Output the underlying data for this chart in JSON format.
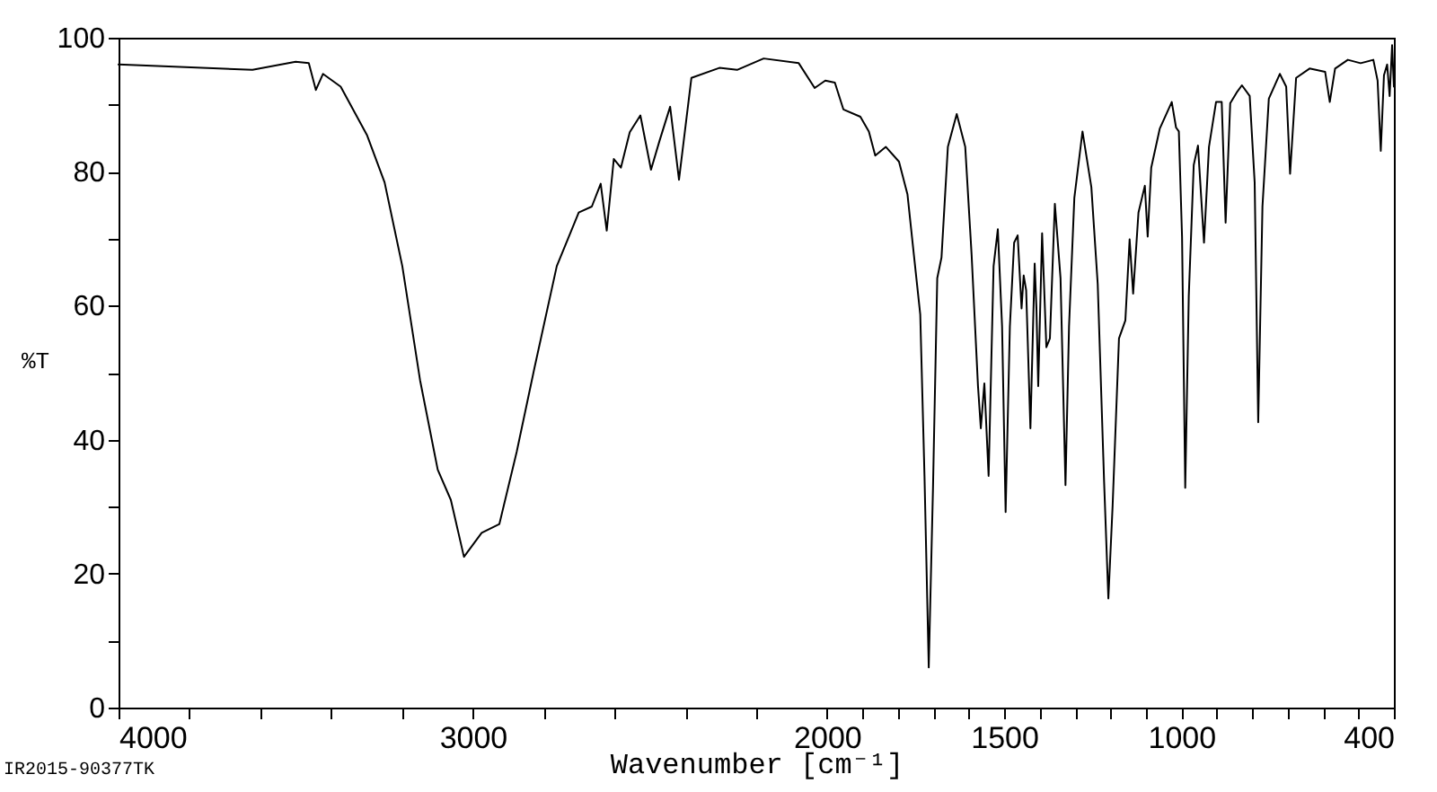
{
  "chart_data": {
    "type": "line",
    "xlabel": "Wavenumber [cm⁻¹]",
    "ylabel": "%T",
    "annotations": [
      "IR2015-90377TK"
    ],
    "xlim": [
      4000,
      400
    ],
    "ylim": [
      0,
      100
    ],
    "xticks": [
      4000,
      {
        "value": 3800,
        "label": null
      },
      {
        "value": 3600,
        "label": null
      },
      {
        "value": 3400,
        "label": null
      },
      {
        "value": 3200,
        "label": null
      },
      3000,
      {
        "value": 2800,
        "label": null
      },
      {
        "value": 2600,
        "label": null
      },
      {
        "value": 2400,
        "label": null
      },
      {
        "value": 2200,
        "label": null
      },
      2000,
      {
        "value": 1900,
        "label": null
      },
      {
        "value": 1800,
        "label": null
      },
      {
        "value": 1700,
        "label": null
      },
      {
        "value": 1600,
        "label": null
      },
      1500,
      {
        "value": 1400,
        "label": null
      },
      {
        "value": 1300,
        "label": null
      },
      {
        "value": 1200,
        "label": null
      },
      {
        "value": 1100,
        "label": null
      },
      1000,
      {
        "value": 900,
        "label": null
      },
      {
        "value": 800,
        "label": null
      },
      {
        "value": 700,
        "label": null
      },
      {
        "value": 600,
        "label": null
      },
      {
        "value": 500,
        "label": null
      },
      400
    ],
    "yticks": [
      0,
      {
        "value": 10,
        "label": null
      },
      20,
      {
        "value": 30,
        "label": null
      },
      40,
      {
        "value": 50,
        "label": null
      },
      60,
      {
        "value": 70,
        "label": null
      },
      80,
      {
        "value": 90,
        "label": null
      },
      100
    ],
    "grid": false,
    "marker": "none",
    "line_style": "solid",
    "series": [
      {
        "color": "#000000",
        "x": [
          4000,
          3622,
          3500,
          3463,
          3443,
          3423,
          3373,
          3299,
          3249,
          3199,
          3149,
          3099,
          3062,
          3025,
          2975,
          2925,
          2876,
          2826,
          2763,
          2701,
          2664,
          2639,
          2622,
          2602,
          2582,
          2557,
          2527,
          2497,
          2473,
          2443,
          2418,
          2383,
          2304,
          2254,
          2179,
          2080,
          2035,
          2005,
          1978,
          1954,
          1906,
          1882,
          1864,
          1834,
          1797,
          1773,
          1755,
          1737,
          1725,
          1713,
          1701,
          1689,
          1677,
          1659,
          1634,
          1610,
          1592,
          1574,
          1566,
          1556,
          1544,
          1530,
          1518,
          1506,
          1496,
          1484,
          1472,
          1462,
          1451,
          1445,
          1438,
          1426,
          1414,
          1409,
          1404,
          1393,
          1381,
          1371,
          1357,
          1341,
          1327,
          1317,
          1302,
          1279,
          1254,
          1236,
          1218,
          1206,
          1194,
          1176,
          1158,
          1146,
          1136,
          1121,
          1103,
          1095,
          1085,
          1061,
          1027,
          1015,
          1007,
          998,
          989,
          979,
          965,
          953,
          936,
          922,
          902,
          886,
          875,
          862,
          844,
          829,
          807,
          793,
          783,
          771,
          753,
          722,
          704,
          693,
          676,
          638,
          594,
          581,
          566,
          530,
          494,
          458,
          446,
          437,
          428,
          419,
          412,
          405,
          400
        ],
        "values": [
          96,
          95.2,
          96.4,
          96.2,
          92.2,
          94.6,
          92.7,
          85.5,
          78.4,
          65.9,
          48.9,
          35.5,
          31,
          22.5,
          26.1,
          27.4,
          38.2,
          50.7,
          65.9,
          73.9,
          74.8,
          78.2,
          71.2,
          81.9,
          80.6,
          85.9,
          88.4,
          80.3,
          84.6,
          89.7,
          78.8,
          94,
          95.5,
          95.2,
          96.9,
          96.2,
          92.5,
          93.6,
          93.3,
          89.3,
          88.2,
          86,
          82.4,
          83.7,
          81.5,
          76.6,
          67.6,
          58.7,
          34.6,
          6,
          32.8,
          64.1,
          67.2,
          83.7,
          88.6,
          83.7,
          67.6,
          48,
          41.7,
          48.4,
          34.6,
          65.9,
          71.4,
          56.9,
          29.2,
          56.9,
          69.4,
          70.5,
          59.6,
          64.5,
          62.3,
          41.7,
          66.3,
          59.6,
          48,
          70.8,
          53.8,
          55.1,
          75.2,
          64.1,
          33.2,
          56.9,
          76.1,
          86,
          77.7,
          63.2,
          33.7,
          16.3,
          30.1,
          55.1,
          57.8,
          69.9,
          61.8,
          73.9,
          77.9,
          70.3,
          80.6,
          86.4,
          90.4,
          86.6,
          86,
          70.3,
          32.8,
          61.4,
          81,
          83.9,
          69.4,
          83.7,
          90.4,
          90.4,
          72.4,
          90.2,
          91.8,
          92.9,
          91.3,
          78.4,
          42.6,
          74.8,
          90.9,
          94.6,
          92.7,
          79.7,
          94,
          95.4,
          94.9,
          90.4,
          95.4,
          96.7,
          96.2,
          96.7,
          93.6,
          83.1,
          94.4,
          96,
          91.3,
          98.9,
          92.7
        ]
      }
    ]
  }
}
